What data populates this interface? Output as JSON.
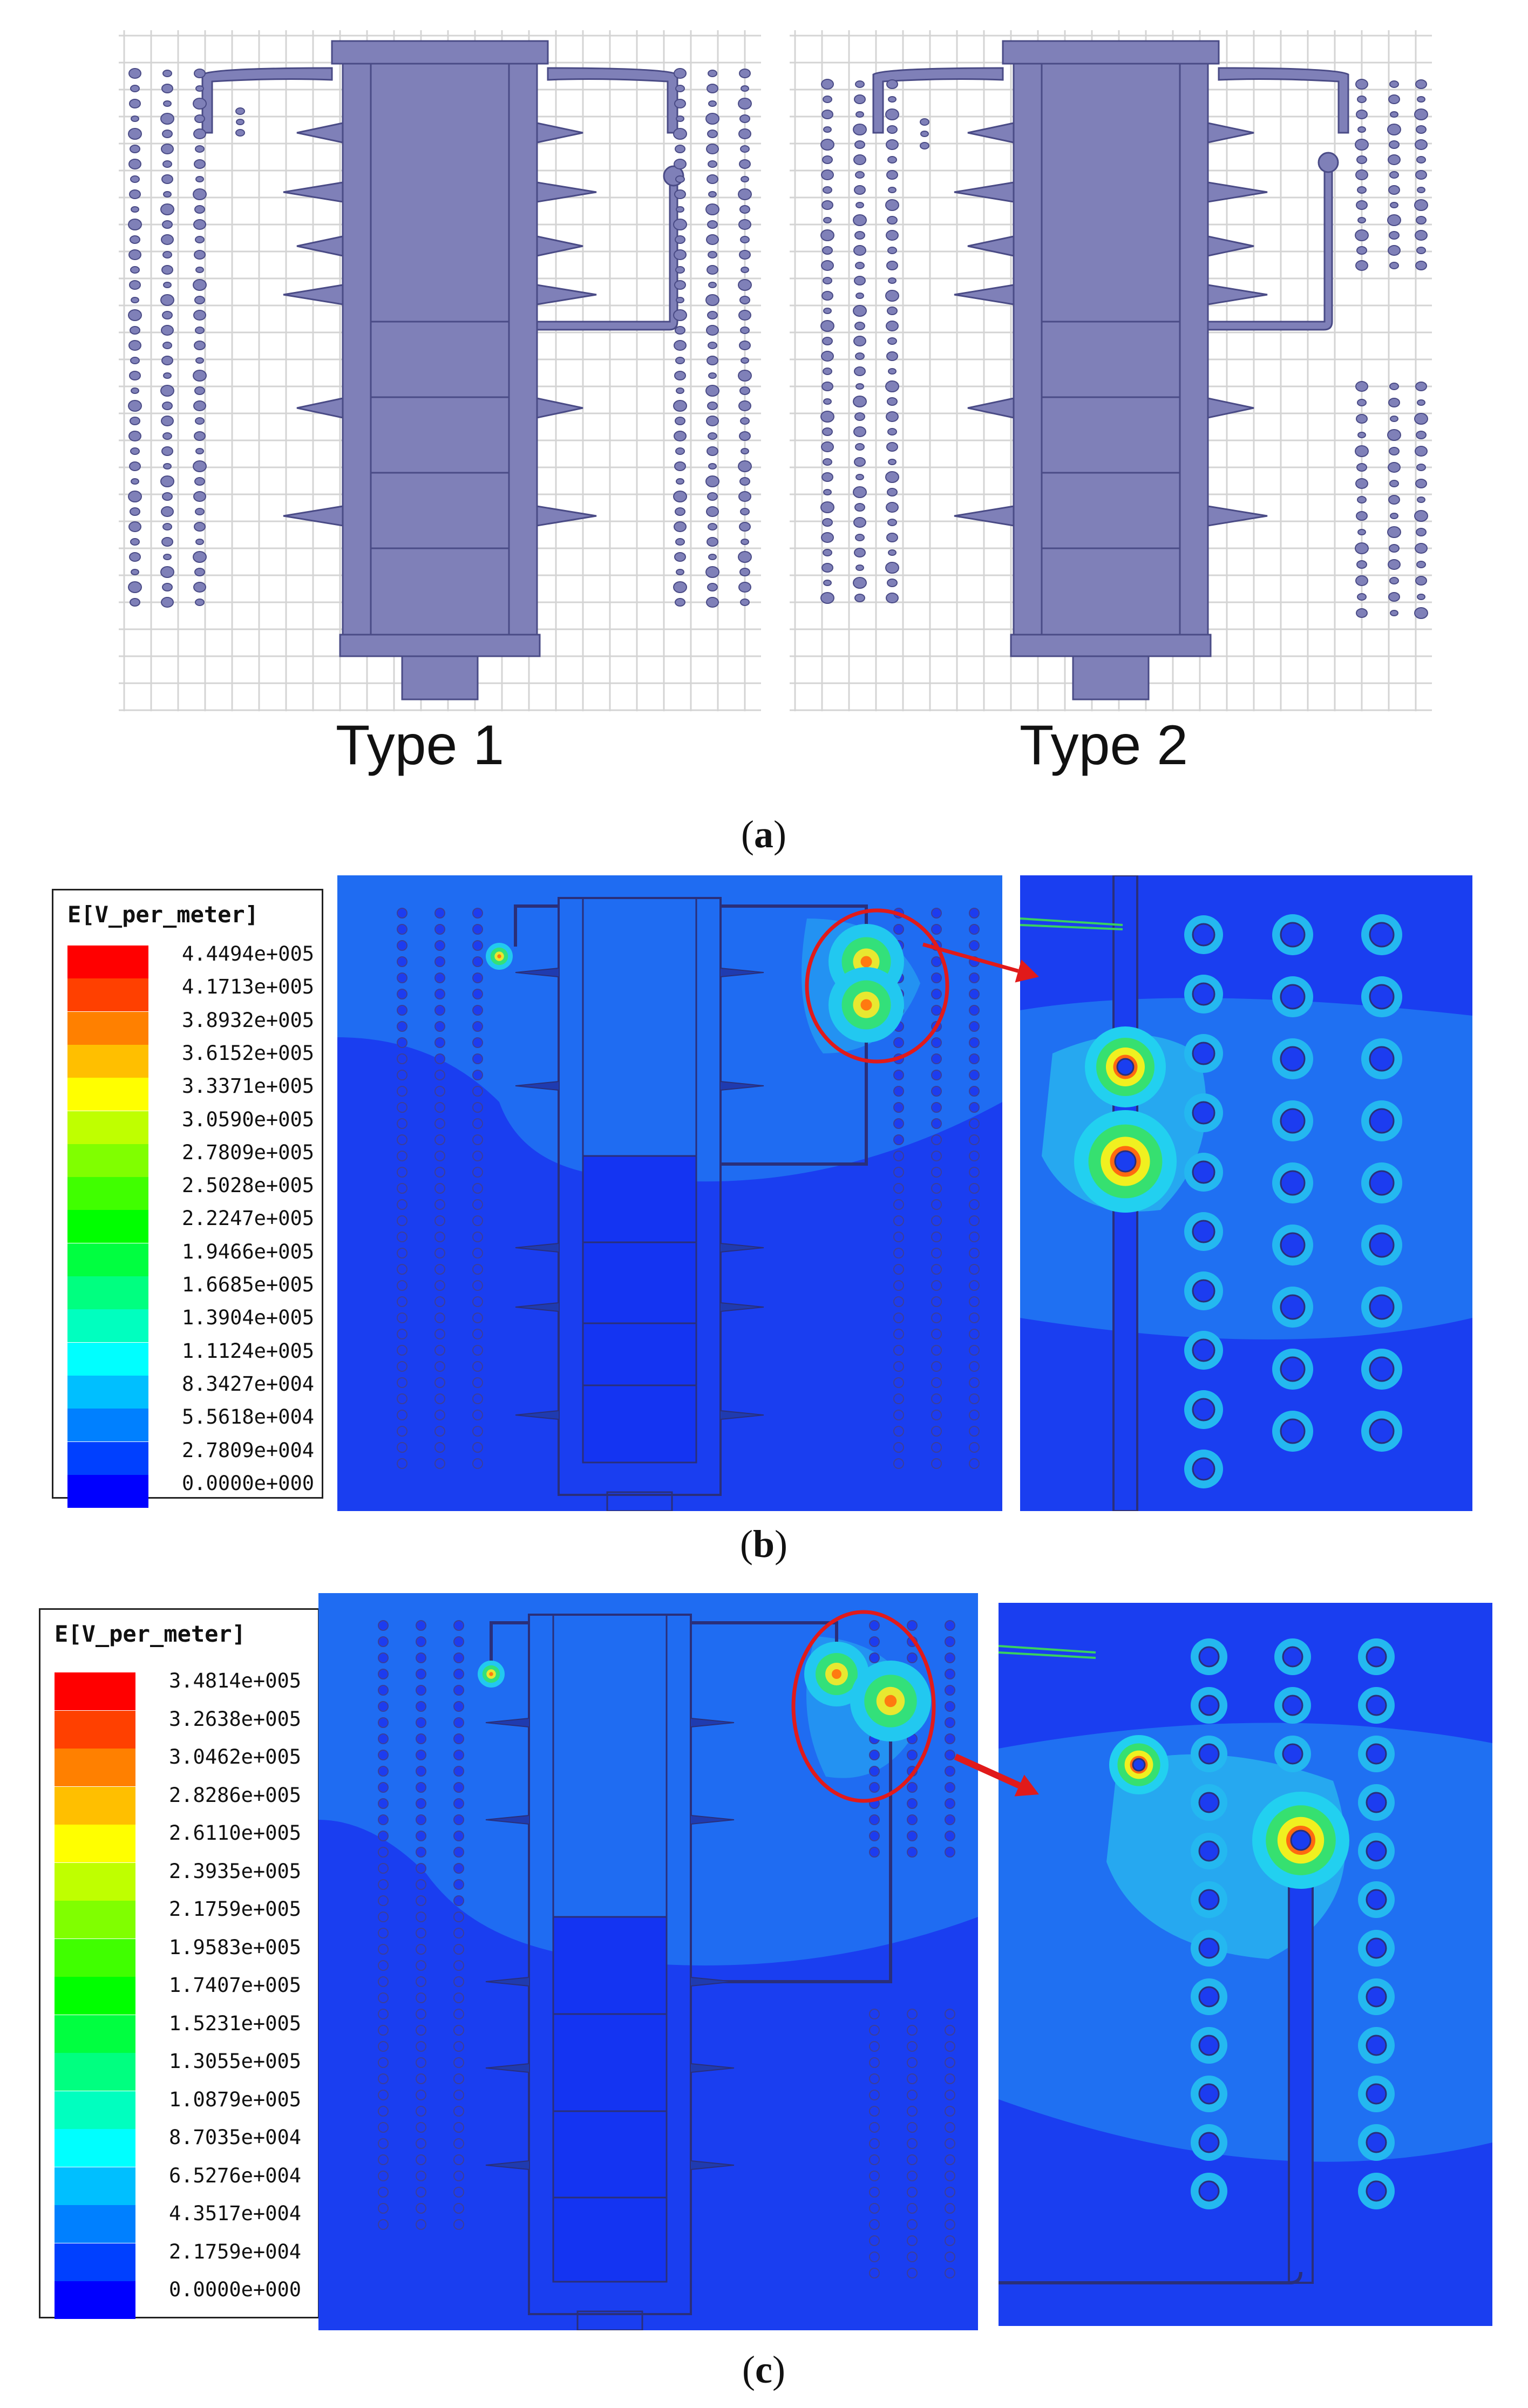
{
  "panel_a": {
    "type1_label": "Type 1",
    "type2_label": "Type 2",
    "caption": "a"
  },
  "panel_b": {
    "caption": "b",
    "legend": {
      "title": "E[V_per_meter]",
      "values": [
        "4.4494e+005",
        "4.1713e+005",
        "3.8932e+005",
        "3.6152e+005",
        "3.3371e+005",
        "3.0590e+005",
        "2.7809e+005",
        "2.5028e+005",
        "2.2247e+005",
        "1.9466e+005",
        "1.6685e+005",
        "1.3904e+005",
        "1.1124e+005",
        "8.3427e+004",
        "5.5618e+004",
        "2.7809e+004",
        "0.0000e+000"
      ]
    }
  },
  "panel_c": {
    "caption": "c",
    "legend": {
      "title": "E[V_per_meter]",
      "values": [
        "3.4814e+005",
        "3.2638e+005",
        "3.0462e+005",
        "2.8286e+005",
        "2.6110e+005",
        "2.3935e+005",
        "2.1759e+005",
        "1.9583e+005",
        "1.7407e+005",
        "1.5231e+005",
        "1.3055e+005",
        "1.0879e+005",
        "8.7035e+004",
        "6.5276e+004",
        "4.3517e+004",
        "2.1759e+004",
        "0.0000e+000"
      ]
    }
  },
  "colors": {
    "scale": [
      "#ff0000",
      "#ff4000",
      "#ff8000",
      "#ffbf00",
      "#ffff00",
      "#bfff00",
      "#80ff00",
      "#40ff00",
      "#00ff00",
      "#00ff40",
      "#00ff80",
      "#00ffbf",
      "#00ffff",
      "#00bfff",
      "#0080ff",
      "#0040ff",
      "#0000ff"
    ],
    "insulator": "#7f80b8",
    "insulator_stroke": "#4a4b86",
    "field_bg": "#1e3fe8",
    "grid": "#d4d4d4"
  }
}
